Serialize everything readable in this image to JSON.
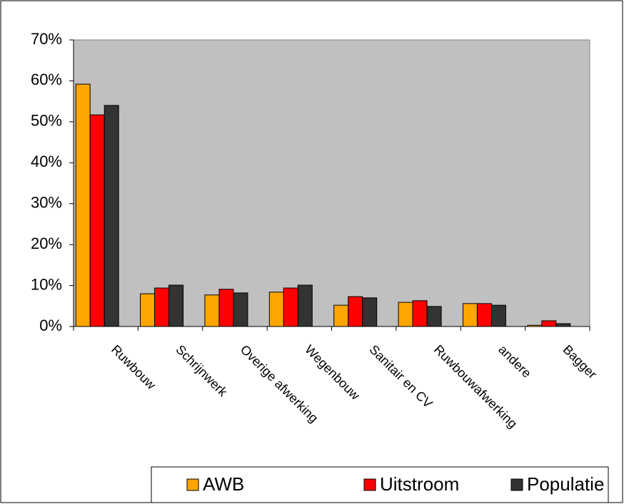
{
  "chart_data": {
    "type": "bar",
    "categories": [
      "Ruwbouw",
      "Schrijnwerk",
      "Overige afwerking",
      "Wegenbouw",
      "Sanitair en CV",
      "Ruwbouwafwerking",
      "andere",
      "Bagger"
    ],
    "series": [
      {
        "name": "AWB",
        "color": "#ffa500",
        "values": [
          59.2,
          8.0,
          7.7,
          8.4,
          5.2,
          5.9,
          5.6,
          0.3
        ]
      },
      {
        "name": "Uitstroom",
        "color": "#ff0000",
        "values": [
          51.7,
          9.4,
          9.1,
          9.4,
          7.3,
          6.3,
          5.6,
          1.4
        ]
      },
      {
        "name": "Populatie",
        "color": "#333333",
        "values": [
          54.0,
          10.1,
          8.2,
          10.1,
          7.0,
          4.9,
          5.2,
          0.7
        ]
      }
    ],
    "ylim": [
      0,
      70
    ],
    "yticks": [
      {
        "value": 0,
        "label": "0%"
      },
      {
        "value": 10,
        "label": "10%"
      },
      {
        "value": 20,
        "label": "20%"
      },
      {
        "value": 30,
        "label": "30%"
      },
      {
        "value": 40,
        "label": "40%"
      },
      {
        "value": 50,
        "label": "50%"
      },
      {
        "value": 60,
        "label": "60%"
      },
      {
        "value": 70,
        "label": "70%"
      }
    ],
    "grid": false,
    "plot_background": "#c0c0c0",
    "legend": "bottom"
  }
}
